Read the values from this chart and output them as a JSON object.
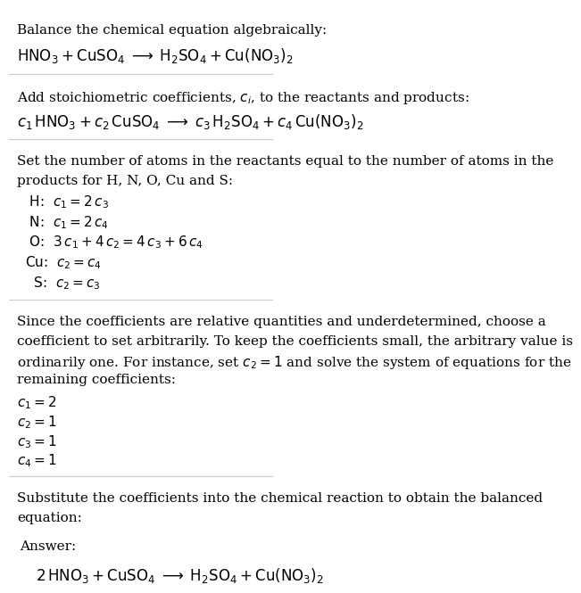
{
  "bg_color": "#ffffff",
  "text_color": "#000000",
  "section1_title": "Balance the chemical equation algebraically:",
  "section1_eq": "$\\mathrm{HNO_3 + CuSO_4 \\;\\longrightarrow\\; H_2SO_4 + Cu(NO_3)_2}$",
  "section2_title": "Add stoichiometric coefficients, $c_i$, to the reactants and products:",
  "section2_eq": "$c_1\\,\\mathrm{HNO_3} + c_2\\,\\mathrm{CuSO_4} \\;\\longrightarrow\\; c_3\\,\\mathrm{H_2SO_4} + c_4\\,\\mathrm{Cu(NO_3)_2}$",
  "section3_title_1": "Set the number of atoms in the reactants equal to the number of atoms in the",
  "section3_title_2": "products for H, N, O, Cu and S:",
  "section3_eqs": [
    " H:  $c_1 = 2\\,c_3$",
    " N:  $c_1 = 2\\,c_4$",
    " O:  $3\\,c_1 + 4\\,c_2 = 4\\,c_3 + 6\\,c_4$",
    "Cu:  $c_2 = c_4$",
    "  S:  $c_2 = c_3$"
  ],
  "section4_line1": "Since the coefficients are relative quantities and underdetermined, choose a",
  "section4_line2": "coefficient to set arbitrarily. To keep the coefficients small, the arbitrary value is",
  "section4_line3": "ordinarily one. For instance, set $c_2 = 1$ and solve the system of equations for the",
  "section4_line4": "remaining coefficients:",
  "section4_eqs": [
    "$c_1 = 2$",
    "$c_2 = 1$",
    "$c_3 = 1$",
    "$c_4 = 1$"
  ],
  "section5_title_1": "Substitute the coefficients into the chemical reaction to obtain the balanced",
  "section5_title_2": "equation:",
  "answer_label": "Answer:",
  "answer_eq": "$2\\,\\mathrm{HNO_3 + CuSO_4 \\;\\longrightarrow\\; H_2SO_4 + Cu(NO_3)_2}$",
  "answer_box_color": "#d6eef8",
  "answer_box_edge_color": "#7ab8d9",
  "line_color": "#cccccc",
  "font_size": 11,
  "eq_font_size": 12
}
